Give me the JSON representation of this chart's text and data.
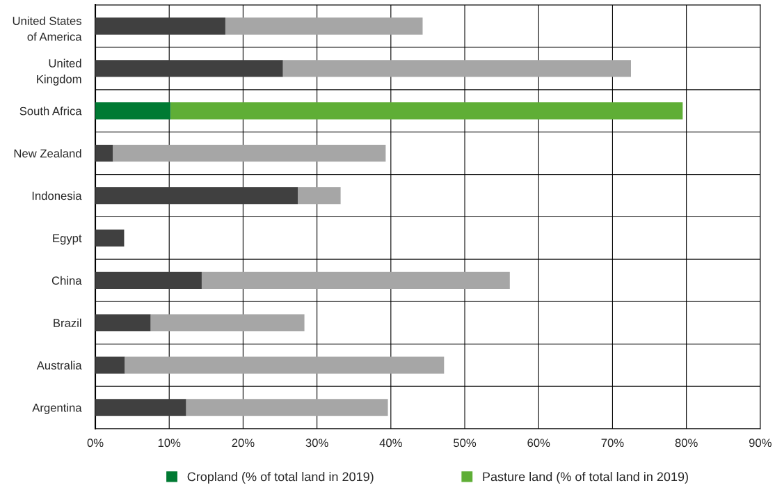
{
  "chart_data": {
    "type": "bar",
    "orientation": "horizontal",
    "stacked": true,
    "categories": [
      "United States\nof America",
      "United\nKingdom",
      "South Africa",
      "New Zealand",
      "Indonesia",
      "Egypt",
      "China",
      "Brazil",
      "Australia",
      "Argentina"
    ],
    "series": [
      {
        "name": "Cropland (% of total land in 2019)",
        "color": "#007a33",
        "colors": [
          "#404040",
          "#404040",
          "#007a33",
          "#404040",
          "#404040",
          "#404040",
          "#404040",
          "#404040",
          "#404040",
          "#404040"
        ],
        "values": [
          17.6,
          25.4,
          10.2,
          2.4,
          27.4,
          3.9,
          14.4,
          7.5,
          4.0,
          12.3
        ]
      },
      {
        "name": "Pasture land (% of total land in 2019)",
        "color": "#5fae36",
        "colors": [
          "#a6a6a6",
          "#a6a6a6",
          "#5fae36",
          "#a6a6a6",
          "#a6a6a6",
          "#a6a6a6",
          "#a6a6a6",
          "#a6a6a6",
          "#a6a6a6",
          "#a6a6a6"
        ],
        "values": [
          26.7,
          47.1,
          69.3,
          36.9,
          5.8,
          null,
          41.7,
          20.8,
          43.2,
          27.3
        ]
      }
    ],
    "xlim": [
      0,
      90
    ],
    "xticks": [
      {
        "value": 0,
        "label": "0%"
      },
      {
        "value": 10,
        "label": "10%"
      },
      {
        "value": 20,
        "label": "20%"
      },
      {
        "value": 30,
        "label": "30%"
      },
      {
        "value": 40,
        "label": "40%"
      },
      {
        "value": 50,
        "label": "50%"
      },
      {
        "value": 60,
        "label": "60%"
      },
      {
        "value": 70,
        "label": "70%"
      },
      {
        "value": 80,
        "label": "80%"
      },
      {
        "value": 90,
        "label": "90%"
      }
    ],
    "grid": true,
    "legend": "bottom"
  }
}
